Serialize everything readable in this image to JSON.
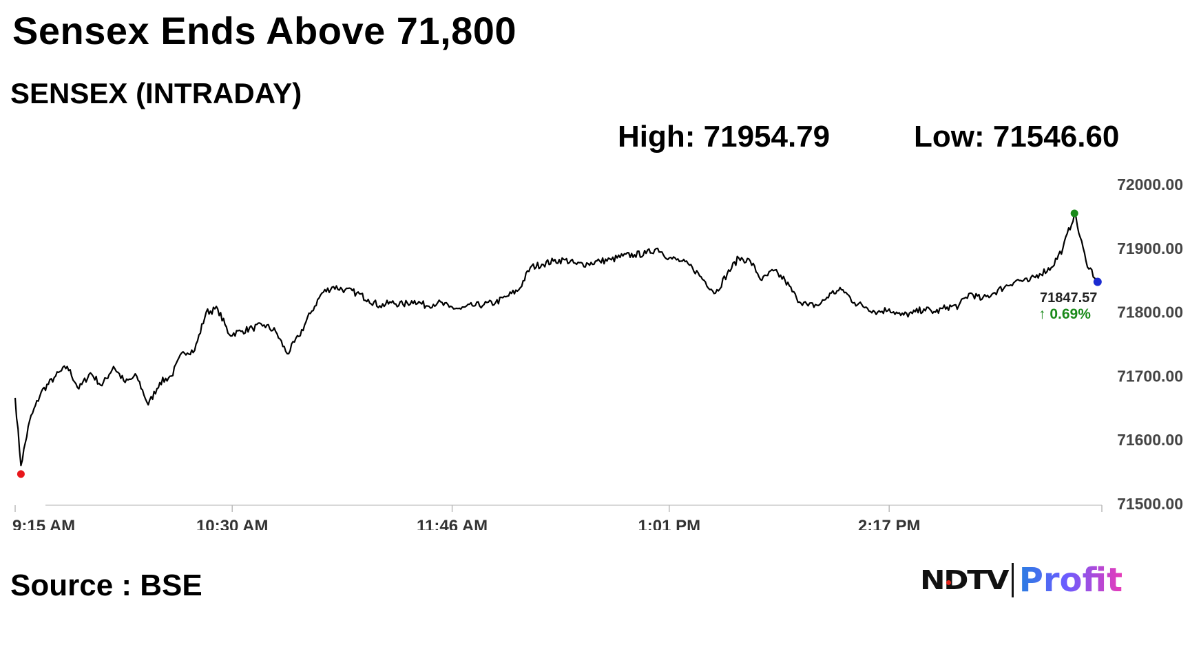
{
  "header": {
    "headline": "Sensex Ends Above 71,800",
    "subtitle": "SENSEX (INTRADAY)",
    "high": "High: 71954.79",
    "low": "Low: 71546.60"
  },
  "footer": {
    "source": "Source : BSE",
    "logo_ndtv": "NDTV",
    "logo_profit": "Profit"
  },
  "chart_data": {
    "type": "line",
    "title": "SENSEX (INTRADAY)",
    "xlabel": "",
    "ylabel": "",
    "ylim": [
      71500,
      72000
    ],
    "y_ticks": [
      "72000.00",
      "71900.00",
      "71800.00",
      "71700.00",
      "71600.00",
      "71500.00"
    ],
    "x_ticks": [
      "9:15 AM",
      "10:30 AM",
      "11:46 AM",
      "1:01 PM",
      "2:17 PM"
    ],
    "x_range": [
      "9:15 AM",
      "3:30 PM"
    ],
    "grid": false,
    "line_color": "#000000",
    "series": [
      {
        "x": [
          "9:15",
          "9:17",
          "9:20",
          "9:24",
          "9:29",
          "9:33",
          "9:37",
          "9:41",
          "9:45",
          "9:49",
          "9:53",
          "9:57",
          "10:01",
          "10:05",
          "10:09",
          "10:13",
          "10:17",
          "10:21",
          "10:25",
          "10:29",
          "10:33",
          "10:37",
          "10:41",
          "10:45",
          "10:49",
          "10:53",
          "10:57",
          "11:01",
          "11:05",
          "11:09",
          "11:13",
          "11:17",
          "11:21",
          "11:25",
          "11:29",
          "11:33",
          "11:37",
          "11:41",
          "11:45",
          "11:49",
          "11:53",
          "11:57",
          "12:01",
          "12:05",
          "12:09",
          "12:13",
          "12:17",
          "12:21",
          "12:25",
          "12:29",
          "12:33",
          "12:37",
          "12:41",
          "12:45",
          "12:49",
          "12:53",
          "12:57",
          "13:01",
          "13:05",
          "13:09",
          "13:13",
          "13:17",
          "13:21",
          "13:25",
          "13:29",
          "13:33",
          "13:37",
          "13:41",
          "13:45",
          "13:49",
          "13:53",
          "13:57",
          "14:01",
          "14:05",
          "14:09",
          "14:13",
          "14:17",
          "14:21",
          "14:25",
          "14:29",
          "14:33",
          "14:37",
          "14:41",
          "14:45",
          "14:49",
          "14:53",
          "14:57",
          "15:01",
          "15:05",
          "15:09",
          "15:13",
          "15:17",
          "15:21",
          "15:25",
          "15:29"
        ],
        "values": [
          71666,
          71560,
          71630,
          71675,
          71700,
          71715,
          71680,
          71705,
          71685,
          71715,
          71690,
          71700,
          71655,
          71690,
          71700,
          71738,
          71740,
          71800,
          71805,
          71765,
          71770,
          71775,
          71780,
          71770,
          71735,
          71762,
          71798,
          71830,
          71840,
          71835,
          71830,
          71820,
          71810,
          71815,
          71812,
          71818,
          71810,
          71815,
          71808,
          71805,
          71810,
          71812,
          71815,
          71825,
          71835,
          71870,
          71875,
          71880,
          71882,
          71875,
          71876,
          71880,
          71882,
          71888,
          71890,
          71892,
          71900,
          71885,
          71880,
          71870,
          71850,
          71830,
          71860,
          71885,
          71880,
          71850,
          71865,
          71850,
          71822,
          71810,
          71812,
          71830,
          71835,
          71815,
          71808,
          71800,
          71805,
          71795,
          71798,
          71805,
          71800,
          71808,
          71810,
          71830,
          71820,
          71830,
          71840,
          71850,
          71848,
          71860,
          71870,
          71900,
          71954,
          71880,
          71847.57
        ]
      }
    ],
    "high": 71954.79,
    "low": 71546.6,
    "last_value": "71847.57",
    "change_pct": "↑ 0.69%",
    "markers": {
      "low_color": "#e8171b",
      "high_color": "#1a8a1a",
      "last_color": "#1b2bd1"
    }
  }
}
